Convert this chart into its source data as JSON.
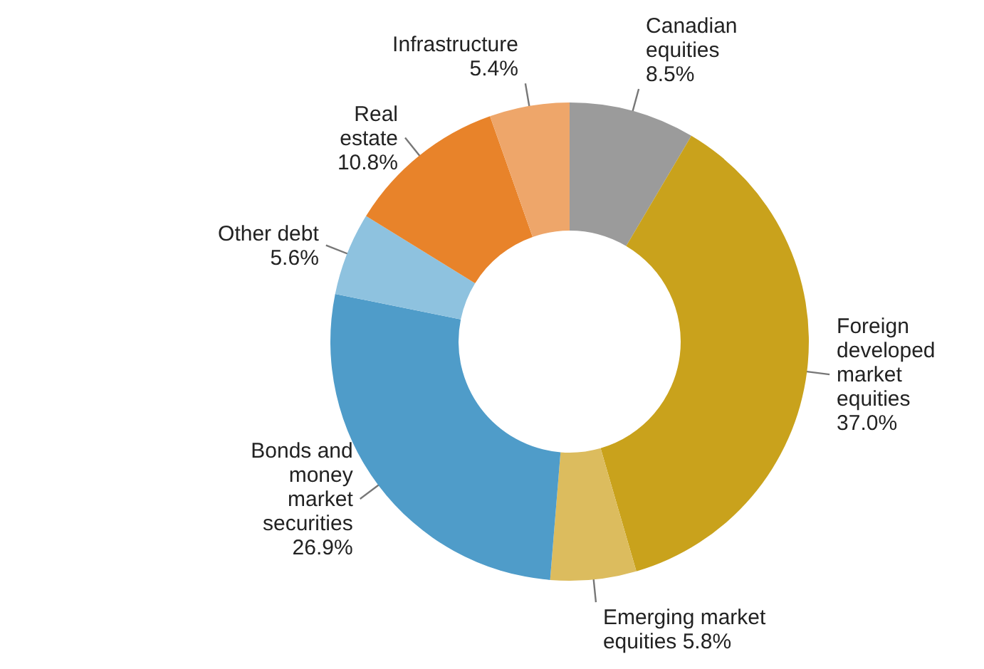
{
  "chart_data": {
    "type": "donut",
    "categories": [
      "Canadian equities",
      "Foreign developed market equities",
      "Emerging market equities",
      "Bonds and money market securities",
      "Other debt",
      "Real estate",
      "Infrastructure"
    ],
    "values": [
      8.5,
      37.0,
      5.8,
      26.9,
      5.6,
      10.8,
      5.4
    ],
    "value_labels": [
      "8.5%",
      "37.0%",
      "5.8%",
      "26.9%",
      "5.6%",
      "10.8%",
      "5.4%"
    ],
    "colors": [
      "#9b9b9b",
      "#c9a21c",
      "#dcbc5e",
      "#4f9cc9",
      "#8ec2df",
      "#e8832a",
      "#eea66a"
    ]
  }
}
